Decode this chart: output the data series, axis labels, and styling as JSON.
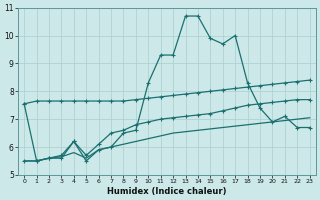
{
  "xlabel": "Humidex (Indice chaleur)",
  "xlim": [
    -0.5,
    23.5
  ],
  "ylim": [
    5,
    11
  ],
  "xticks": [
    0,
    1,
    2,
    3,
    4,
    5,
    6,
    7,
    8,
    9,
    10,
    11,
    12,
    13,
    14,
    15,
    16,
    17,
    18,
    19,
    20,
    21,
    22,
    23
  ],
  "yticks": [
    5,
    6,
    7,
    8,
    9,
    10,
    11
  ],
  "bg_color": "#cce8e8",
  "line_color": "#1a7070",
  "grid_color": "#aacece",
  "line1_x": [
    0,
    1,
    2,
    3,
    4,
    5,
    6,
    7,
    8,
    9,
    10,
    11,
    12,
    13,
    14,
    15,
    16,
    17,
    18,
    19,
    20,
    21,
    22,
    23
  ],
  "line1_y": [
    7.55,
    7.65,
    7.65,
    7.65,
    7.65,
    7.65,
    7.65,
    7.65,
    7.65,
    7.7,
    7.75,
    7.8,
    7.85,
    7.9,
    7.95,
    8.0,
    8.05,
    8.1,
    8.15,
    8.2,
    8.25,
    8.3,
    8.35,
    8.4
  ],
  "line2_x": [
    0,
    1,
    2,
    3,
    4,
    5,
    6,
    7,
    8,
    9,
    10,
    11,
    12,
    13,
    14,
    15,
    16,
    17,
    18,
    19,
    20,
    21,
    22,
    23
  ],
  "line2_y": [
    7.55,
    5.5,
    5.6,
    5.6,
    6.2,
    5.5,
    5.9,
    6.0,
    6.5,
    6.6,
    8.3,
    9.3,
    9.3,
    10.7,
    10.7,
    9.9,
    9.7,
    10.0,
    8.3,
    7.4,
    6.9,
    7.1,
    6.7,
    6.7
  ],
  "line3_x": [
    0,
    1,
    2,
    3,
    4,
    5,
    6,
    7,
    8,
    9,
    10,
    11,
    12,
    13,
    14,
    15,
    16,
    17,
    18,
    19,
    20,
    21,
    22,
    23
  ],
  "line3_y": [
    5.5,
    5.5,
    5.6,
    5.7,
    6.2,
    5.7,
    6.1,
    6.5,
    6.6,
    6.8,
    6.9,
    7.0,
    7.05,
    7.1,
    7.15,
    7.2,
    7.3,
    7.4,
    7.5,
    7.55,
    7.6,
    7.65,
    7.7,
    7.7
  ],
  "line4_x": [
    0,
    1,
    2,
    3,
    4,
    5,
    6,
    7,
    8,
    9,
    10,
    11,
    12,
    13,
    14,
    15,
    16,
    17,
    18,
    19,
    20,
    21,
    22,
    23
  ],
  "line4_y": [
    5.5,
    5.5,
    5.6,
    5.65,
    5.8,
    5.6,
    5.9,
    6.0,
    6.1,
    6.2,
    6.3,
    6.4,
    6.5,
    6.55,
    6.6,
    6.65,
    6.7,
    6.75,
    6.8,
    6.85,
    6.9,
    6.95,
    7.0,
    7.05
  ]
}
